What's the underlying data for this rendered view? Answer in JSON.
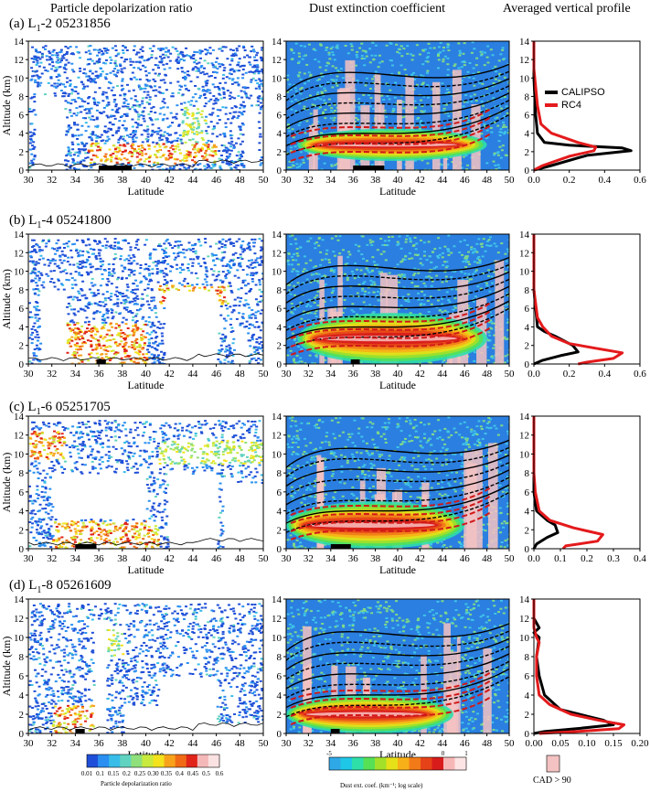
{
  "headers": {
    "col1": "Particle depolarization ratio",
    "col2": "Dust extinction coefficient",
    "col3": "Averaged vertical profile"
  },
  "rows": [
    {
      "label_prefix": "(a) L",
      "label_sub": "1",
      "label_suffix": "-2 05231856"
    },
    {
      "label_prefix": "(b) L",
      "label_sub": "1",
      "label_suffix": "-4 05241800"
    },
    {
      "label_prefix": "(c) L",
      "label_sub": "1",
      "label_suffix": "-6 05251705"
    },
    {
      "label_prefix": "(d) L",
      "label_sub": "1",
      "label_suffix": "-8 05261609"
    }
  ],
  "axes": {
    "ylabel": "Altitude (km)",
    "xlabel": "Latitude",
    "lat_ticks": [
      "30",
      "32",
      "34",
      "36",
      "38",
      "40",
      "42",
      "44",
      "46",
      "48",
      "50"
    ],
    "alt_ticks": [
      "0",
      "2",
      "4",
      "6",
      "8",
      "10",
      "12",
      "14"
    ]
  },
  "legend": {
    "calipso": "CALIPSO",
    "rc4": "RC4"
  },
  "colorbar1": {
    "ticks": [
      "0.01",
      "0.1",
      "0.15",
      "0.2",
      "0.25",
      "0.30",
      "0.35",
      "0.4",
      "0.45",
      "0.5",
      "0.6"
    ],
    "title": "Particle depolarization ratio"
  },
  "colorbar2": {
    "tick_min": "-5",
    "tick_zero": "0",
    "tick_max": "1",
    "title": "Dust ext. coef. (km⁻¹; log scale)",
    "cad_label": "CAD > 90"
  },
  "colors": {
    "calipso": "#000000",
    "rc4": "#e41a1c",
    "cad": "#f4c2c2",
    "depol_scale": [
      "#1f4fd8",
      "#2a8ff0",
      "#38bde8",
      "#5fd3c0",
      "#8fe07a",
      "#c8ea3c",
      "#f3e21c",
      "#f7a21a",
      "#f06a15",
      "#e0241a",
      "#f5b8b8",
      "#fbe2e2"
    ],
    "ext_scale": [
      "#2fa8e8",
      "#1fc7e6",
      "#2fdfa8",
      "#55e055",
      "#a2e02a",
      "#e6e018",
      "#f8b018",
      "#f27a18",
      "#e64218",
      "#d81c1c",
      "#f7b7b7",
      "#fde4e4"
    ]
  },
  "chart_data": [
    {
      "type": "line",
      "panel": "(a) averaged vertical profile",
      "x_range": [
        0,
        0.6
      ],
      "x_ticks": [
        "0.0",
        "0.2",
        "0.4",
        "0.6"
      ],
      "ylim": [
        0,
        14
      ],
      "series": [
        {
          "name": "CALIPSO",
          "x": [
            0.0,
            0.0,
            0.01,
            0.02,
            0.06,
            0.2,
            0.5,
            0.55,
            0.3,
            0.1,
            0.0
          ],
          "y": [
            14,
            10,
            6,
            4,
            3,
            2.7,
            2.4,
            2.1,
            1.6,
            0.5,
            0
          ]
        },
        {
          "name": "RC4",
          "x": [
            0.0,
            0.0,
            0.02,
            0.04,
            0.1,
            0.25,
            0.35,
            0.34,
            0.2,
            0.05,
            0.0
          ],
          "y": [
            14,
            11,
            7,
            5,
            4,
            3,
            2.5,
            2.1,
            1.5,
            0.5,
            0
          ]
        }
      ]
    },
    {
      "type": "line",
      "panel": "(b) averaged vertical profile",
      "x_range": [
        0,
        0.6
      ],
      "x_ticks": [
        "0.0",
        "0.2",
        "0.4",
        "0.6"
      ],
      "ylim": [
        0,
        14
      ],
      "series": [
        {
          "name": "CALIPSO",
          "x": [
            0.0,
            0.0,
            0.02,
            0.06,
            0.12,
            0.22,
            0.25,
            0.15,
            0.05,
            0.0
          ],
          "y": [
            14,
            8,
            4,
            3.5,
            3,
            2,
            1.3,
            0.9,
            0.4,
            0
          ]
        },
        {
          "name": "RC4",
          "x": [
            0.0,
            0.0,
            0.02,
            0.05,
            0.1,
            0.2,
            0.35,
            0.5,
            0.45,
            0.3,
            0.25
          ],
          "y": [
            14,
            8,
            5,
            4,
            3,
            2.2,
            1.7,
            1.2,
            0.6,
            0.2,
            0
          ]
        }
      ]
    },
    {
      "type": "line",
      "panel": "(c) averaged vertical profile",
      "x_range": [
        0,
        0.4
      ],
      "x_ticks": [
        "0.0",
        "0.1",
        "0.2",
        "0.3",
        "0.4"
      ],
      "ylim": [
        0,
        14
      ],
      "series": [
        {
          "name": "CALIPSO",
          "x": [
            0.0,
            0.0,
            0.01,
            0.05,
            0.08,
            0.09,
            0.05,
            0.01,
            0.0
          ],
          "y": [
            14,
            6,
            4,
            3,
            2.5,
            1.7,
            1.2,
            0.5,
            0
          ]
        },
        {
          "name": "RC4",
          "x": [
            0.0,
            0.0,
            0.005,
            0.02,
            0.06,
            0.15,
            0.26,
            0.24,
            0.12,
            0.11
          ],
          "y": [
            14,
            8,
            6,
            4,
            3,
            2.2,
            1.5,
            0.8,
            0.3,
            0
          ]
        }
      ]
    },
    {
      "type": "line",
      "panel": "(d) averaged vertical profile",
      "x_range": [
        0,
        0.2
      ],
      "x_ticks": [
        "0.00",
        "0.05",
        "0.10",
        "0.15",
        "0.20"
      ],
      "ylim": [
        0,
        14
      ],
      "series": [
        {
          "name": "CALIPSO",
          "x": [
            0.0,
            0.0,
            0.01,
            0.0,
            0.01,
            0.005,
            0.01,
            0.02,
            0.05,
            0.1,
            0.13,
            0.15,
            0.08,
            0.02,
            0.0
          ],
          "y": [
            14,
            12,
            11,
            10.5,
            10,
            8,
            6,
            4,
            2.5,
            1.8,
            1.4,
            0.9,
            0.5,
            0.2,
            0
          ]
        },
        {
          "name": "RC4",
          "x": [
            0.0,
            0.0,
            0.005,
            0.01,
            0.005,
            0.005,
            0.01,
            0.03,
            0.07,
            0.12,
            0.17,
            0.16,
            0.08,
            0.01
          ],
          "y": [
            14,
            11,
            10,
            9.5,
            8,
            6,
            4,
            3,
            2,
            1.4,
            0.9,
            0.5,
            0.2,
            0
          ]
        }
      ]
    }
  ]
}
